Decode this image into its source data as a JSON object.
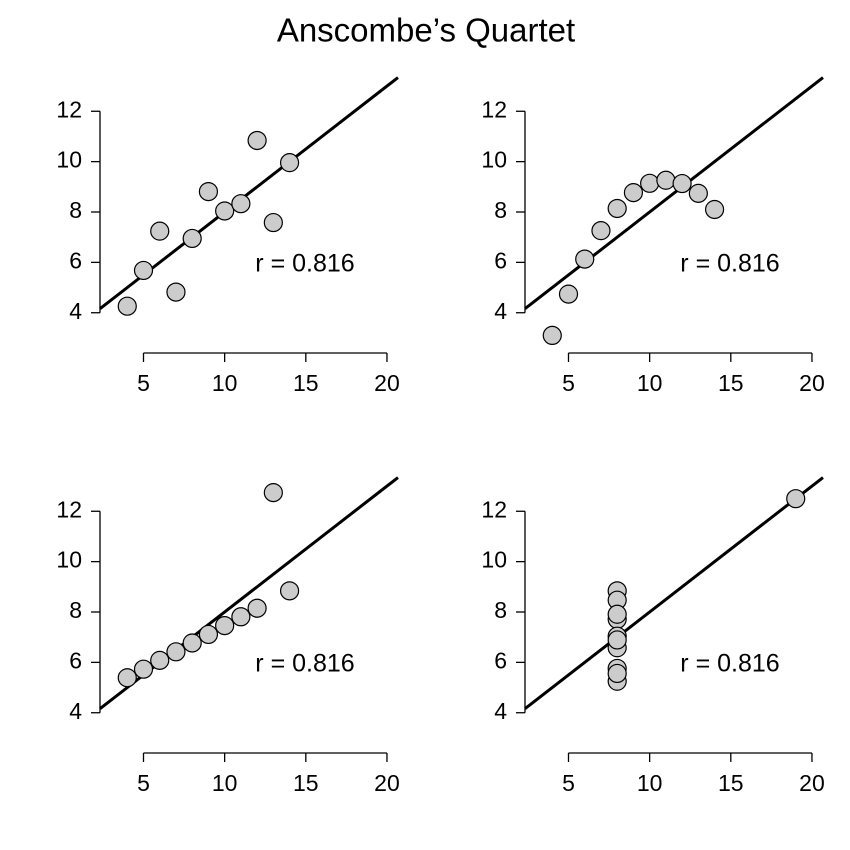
{
  "title": "Anscombe’s Quartet",
  "chart_data": [
    {
      "type": "scatter",
      "annotation": "r = 0.816",
      "color": "#cccccc",
      "x": [
        10,
        8,
        13,
        9,
        11,
        14,
        6,
        4,
        12,
        7,
        5
      ],
      "values": [
        8.04,
        6.95,
        7.58,
        8.81,
        8.33,
        9.96,
        7.24,
        4.26,
        10.84,
        4.82,
        5.68
      ],
      "fit": {
        "intercept": 3,
        "slope": 0.5
      },
      "xlim": [
        2.32,
        20.68
      ],
      "ylim": [
        2.6,
        13.4
      ],
      "xticks": [
        5,
        10,
        15,
        20
      ],
      "yticks": [
        4,
        6,
        8,
        10,
        12
      ]
    },
    {
      "type": "scatter",
      "annotation": "r = 0.816",
      "color": "#cccccc",
      "x": [
        10,
        8,
        13,
        9,
        11,
        14,
        6,
        4,
        12,
        7,
        5
      ],
      "values": [
        9.14,
        8.14,
        8.74,
        8.77,
        9.26,
        8.1,
        6.13,
        3.1,
        9.13,
        7.26,
        4.74
      ],
      "fit": {
        "intercept": 3,
        "slope": 0.5
      },
      "xlim": [
        2.32,
        20.68
      ],
      "ylim": [
        2.6,
        13.4
      ],
      "xticks": [
        5,
        10,
        15,
        20
      ],
      "yticks": [
        4,
        6,
        8,
        10,
        12
      ]
    },
    {
      "type": "scatter",
      "annotation": "r = 0.816",
      "color": "#cccccc",
      "x": [
        10,
        8,
        13,
        9,
        11,
        14,
        6,
        4,
        12,
        7,
        5
      ],
      "values": [
        7.46,
        6.77,
        12.74,
        7.11,
        7.81,
        8.84,
        6.08,
        5.39,
        8.15,
        6.42,
        5.73
      ],
      "fit": {
        "intercept": 3,
        "slope": 0.5
      },
      "xlim": [
        2.32,
        20.68
      ],
      "ylim": [
        2.6,
        13.4
      ],
      "xticks": [
        5,
        10,
        15,
        20
      ],
      "yticks": [
        4,
        6,
        8,
        10,
        12
      ]
    },
    {
      "type": "scatter",
      "annotation": "r = 0.816",
      "color": "#cccccc",
      "x": [
        8,
        8,
        8,
        8,
        8,
        8,
        8,
        19,
        8,
        8,
        8
      ],
      "values": [
        6.58,
        5.76,
        7.71,
        8.84,
        8.47,
        7.04,
        5.25,
        12.5,
        5.56,
        7.91,
        6.89
      ],
      "fit": {
        "intercept": 3,
        "slope": 0.5
      },
      "xlim": [
        2.32,
        20.68
      ],
      "ylim": [
        2.6,
        13.4
      ],
      "xticks": [
        5,
        10,
        15,
        20
      ],
      "yticks": [
        4,
        6,
        8,
        10,
        12
      ]
    }
  ]
}
